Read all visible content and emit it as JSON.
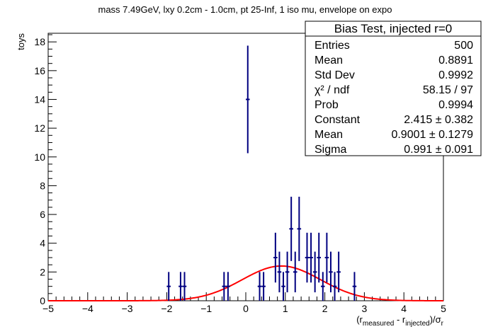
{
  "chart_data": {
    "type": "scatter",
    "title": "mass 7.49GeV, lxy 0.2cm - 1.0cm, pt 25-Inf, 1 iso mu, envelope on expo",
    "ylabel": "toys",
    "xlabel": {
      "open": "(r",
      "sub1": "measured",
      "mid": " - r",
      "sub2": "injected",
      "close": ")/σ",
      "sub3": "r"
    },
    "xlim": [
      -5,
      5
    ],
    "ylim": [
      0,
      18.6
    ],
    "x_ticks": [
      -5,
      -4,
      -3,
      -2,
      -1,
      0,
      1,
      2,
      3,
      4,
      5
    ],
    "x_tick_labels": [
      "−5",
      "−4",
      "−3",
      "−2",
      "−1",
      "0",
      "1",
      "2",
      "3",
      "4",
      "5"
    ],
    "y_ticks": [
      0,
      2,
      4,
      6,
      8,
      10,
      12,
      14,
      16,
      18
    ],
    "y_tick_labels": [
      "0",
      "2",
      "4",
      "6",
      "8",
      "10",
      "12",
      "14",
      "16",
      "18"
    ],
    "bin_width": 0.1,
    "series": [
      {
        "type": "errorbar",
        "color": "#000080",
        "points": [
          {
            "x": -1.95,
            "y": 1
          },
          {
            "x": -1.65,
            "y": 1
          },
          {
            "x": -1.55,
            "y": 1
          },
          {
            "x": -0.55,
            "y": 1
          },
          {
            "x": -0.45,
            "y": 1
          },
          {
            "x": 0.05,
            "y": 14
          },
          {
            "x": 0.35,
            "y": 1
          },
          {
            "x": 0.45,
            "y": 1
          },
          {
            "x": 0.75,
            "y": 3
          },
          {
            "x": 0.85,
            "y": 2
          },
          {
            "x": 0.95,
            "y": 1
          },
          {
            "x": 1.05,
            "y": 2
          },
          {
            "x": 1.15,
            "y": 5
          },
          {
            "x": 1.25,
            "y": 2
          },
          {
            "x": 1.35,
            "y": 5
          },
          {
            "x": 1.55,
            "y": 3
          },
          {
            "x": 1.65,
            "y": 3
          },
          {
            "x": 1.75,
            "y": 2
          },
          {
            "x": 1.85,
            "y": 3
          },
          {
            "x": 1.95,
            "y": 1
          },
          {
            "x": 2.05,
            "y": 3
          },
          {
            "x": 2.15,
            "y": 2
          },
          {
            "x": 2.25,
            "y": 1
          },
          {
            "x": 2.35,
            "y": 2
          },
          {
            "x": 2.75,
            "y": 1
          }
        ]
      },
      {
        "type": "gaussian_fit",
        "color": "#ff0000",
        "constant": 2.415,
        "mean": 0.9001,
        "sigma": 0.991
      }
    ],
    "stats_box": {
      "title": "Bias Test, injected r=0",
      "rows": [
        {
          "label": "Entries",
          "value": "500"
        },
        {
          "label": "Mean",
          "value": "0.8891"
        },
        {
          "label": "Std Dev",
          "value": "0.9992"
        },
        {
          "label": "χ² / ndf",
          "value": "58.15 / 97"
        },
        {
          "label": "Prob",
          "value": "0.9994"
        },
        {
          "label": "Constant",
          "value": "2.415 ± 0.382"
        },
        {
          "label": "Mean",
          "value": "0.9001 ± 0.1279"
        },
        {
          "label": "Sigma",
          "value": "0.991 ± 0.091"
        }
      ]
    }
  }
}
